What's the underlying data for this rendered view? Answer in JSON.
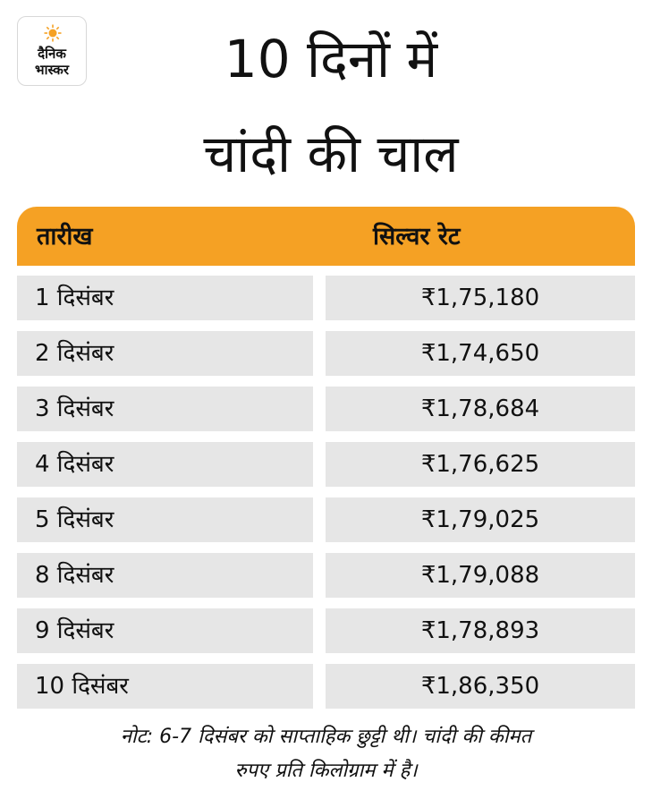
{
  "logo": {
    "line1": "दैनिक",
    "line2": "भास्कर",
    "icon": "sun-icon",
    "sun_color": "#f5a124"
  },
  "title": {
    "line1": "10 दिनों में",
    "line2": "चांदी की चाल"
  },
  "table": {
    "header_color": "#f5a124",
    "columns": [
      "तारीख",
      "सिल्वर रेट"
    ],
    "rows": [
      [
        "1 दिसंबर",
        "₹1,75,180"
      ],
      [
        "2 दिसंबर",
        "₹1,74,650"
      ],
      [
        "3 दिसंबर",
        "₹1,78,684"
      ],
      [
        "4 दिसंबर",
        "₹1,76,625"
      ],
      [
        "5 दिसंबर",
        "₹1,79,025"
      ],
      [
        "8 दिसंबर",
        "₹1,79,088"
      ],
      [
        "9 दिसंबर",
        "₹1,78,893"
      ],
      [
        "10 दिसंबर",
        "₹1,86,350"
      ]
    ]
  },
  "note": {
    "line1": "नोट: 6-7 दिसंबर को साप्ताहिक छुट्टी थी। चांदी की कीमत",
    "line2": "रुपए प्रति किलोग्राम में है।"
  }
}
